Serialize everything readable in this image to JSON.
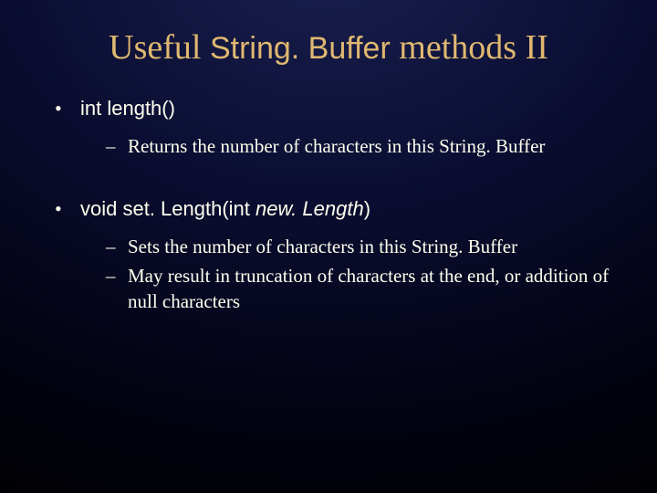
{
  "title": {
    "part1": "Useful ",
    "part2": "String. Buffer",
    "part3": " methods II"
  },
  "items": [
    {
      "method_plain": "int length()",
      "subs": [
        "Returns the number of characters in this String. Buffer"
      ]
    },
    {
      "method_prefix": "void set. Length(int ",
      "method_italic": "new. Length",
      "method_suffix": ")",
      "subs": [
        "Sets the number of characters in this String. Buffer",
        "May result in truncation of characters at the end, or addition of null characters"
      ]
    }
  ],
  "style": {
    "title_color": "#e0b870",
    "text_color": "#ffffee",
    "bg_inner": "#1a2050",
    "bg_outer": "#000000",
    "title_fontsize": 38,
    "body_fontsize": 22,
    "sub_fontsize": 21
  }
}
